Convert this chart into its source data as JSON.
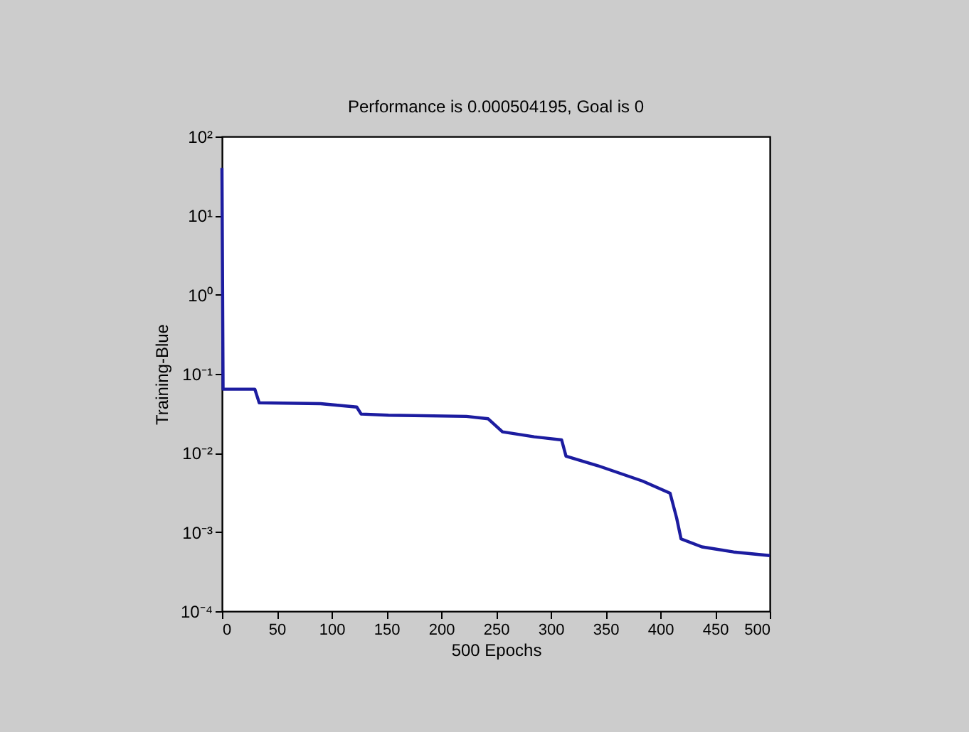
{
  "chart_data": {
    "type": "line",
    "title": "Performance is 0.000504195, Goal is 0",
    "xlabel": "500 Epochs",
    "ylabel": "Training-Blue",
    "series": [
      {
        "color": "#1c1ca0",
        "x": [
          0,
          1,
          30,
          34,
          90,
          123,
          127,
          152,
          223,
          243,
          256,
          285,
          310,
          314,
          343,
          384,
          409,
          415,
          419,
          438,
          467,
          500
        ],
        "values": [
          40,
          0.064,
          0.064,
          0.043,
          0.042,
          0.038,
          0.031,
          0.03,
          0.029,
          0.027,
          0.0185,
          0.016,
          0.0146,
          0.0091,
          0.0069,
          0.0044,
          0.0031,
          0.0015,
          0.00082,
          0.00065,
          0.00056,
          0.000504
        ]
      }
    ],
    "xlim": [
      0,
      500
    ],
    "xticks": [
      0,
      50,
      100,
      150,
      200,
      250,
      300,
      350,
      400,
      450,
      500
    ],
    "ylim": [
      0.0001,
      100
    ],
    "yticks": [
      {
        "value": 0.0001,
        "label": "10⁻⁴"
      },
      {
        "value": 0.001,
        "label": "10⁻³"
      },
      {
        "value": 0.01,
        "label": "10⁻²"
      },
      {
        "value": 0.1,
        "label": "10⁻¹"
      },
      {
        "value": 1,
        "label": "10⁰"
      },
      {
        "value": 10,
        "label": "10¹"
      },
      {
        "value": 100,
        "label": "10²"
      }
    ],
    "log": "y",
    "marker": "none",
    "line_style": "solid",
    "grid": false
  }
}
